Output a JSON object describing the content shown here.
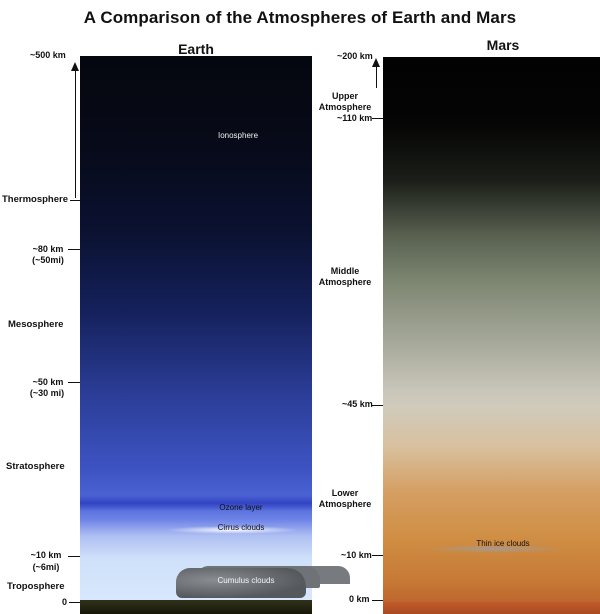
{
  "title": "A Comparison of the Atmospheres of Earth and Mars",
  "earth": {
    "heading": "Earth",
    "top_label": "~500 km",
    "layers": {
      "thermosphere": "Thermosphere",
      "mesosphere": "Mesosphere",
      "stratosphere": "Stratosphere",
      "troposphere": "Troposphere"
    },
    "altitudes": {
      "km80": "~80 km",
      "mi50": "(~50mi)",
      "km50": "~50 km",
      "mi30": "(~30 mi)",
      "km10": "~10 km",
      "mi6": "(~6mi)",
      "zero": "0"
    },
    "features": {
      "ionosphere": "Ionosphere",
      "ozone": "Ozone  layer",
      "cirrus": "Cirrus clouds",
      "cumulus": "Cumulus clouds"
    }
  },
  "mars": {
    "heading": "Mars",
    "top_label": "~200 km",
    "upper_label_1": "Upper",
    "upper_label_2": "Atmosphere",
    "km110": "~110 km",
    "middle_label_1": "Middle",
    "middle_label_2": "Atmosphere",
    "km45": "~45 km",
    "lower_label_1": "Lower",
    "lower_label_2": "Atmosphere",
    "km10": "~10 km",
    "km0": "0 km",
    "thin_ice": "Thin ice clouds"
  }
}
